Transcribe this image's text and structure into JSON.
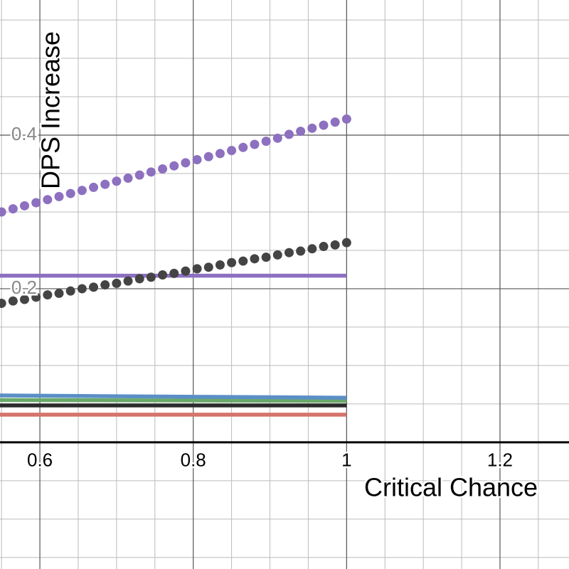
{
  "chart_data": {
    "type": "line",
    "x_label": "Critical Chance",
    "y_label": "DPS Increase",
    "xlim": [
      0.548,
      1.29
    ],
    "ylim": [
      -0.165,
      0.576
    ],
    "xticks": [
      0.6,
      0.8,
      1,
      1.2
    ],
    "yticks": [
      0.2,
      0.4
    ],
    "minor_xticks": [
      0.55,
      0.65,
      0.7,
      0.75,
      0.85,
      0.9,
      0.95,
      1.05,
      1.1,
      1.15,
      1.25
    ],
    "minor_yticks": [
      -0.15,
      -0.1,
      -0.05,
      0.05,
      0.1,
      0.15,
      0.25,
      0.3,
      0.35,
      0.45,
      0.5,
      0.55
    ],
    "grid": true,
    "series": [
      {
        "style": "points",
        "color": "#8d70c0",
        "x": [
          0.55,
          0.565,
          0.58,
          0.595,
          0.61,
          0.625,
          0.64,
          0.655,
          0.67,
          0.685,
          0.7,
          0.715,
          0.73,
          0.745,
          0.76,
          0.775,
          0.79,
          0.805,
          0.82,
          0.835,
          0.85,
          0.865,
          0.88,
          0.895,
          0.91,
          0.925,
          0.94,
          0.955,
          0.97,
          0.985,
          1.0
        ],
        "values": [
          0.3,
          0.304,
          0.308,
          0.312,
          0.316,
          0.32,
          0.324,
          0.328,
          0.332,
          0.336,
          0.34,
          0.344,
          0.348,
          0.352,
          0.356,
          0.36,
          0.364,
          0.368,
          0.372,
          0.376,
          0.38,
          0.384,
          0.388,
          0.392,
          0.396,
          0.401,
          0.405,
          0.409,
          0.413,
          0.417,
          0.421
        ]
      },
      {
        "style": "points",
        "color": "#444444",
        "x": [
          0.55,
          0.565,
          0.58,
          0.595,
          0.61,
          0.625,
          0.64,
          0.655,
          0.67,
          0.685,
          0.7,
          0.715,
          0.73,
          0.745,
          0.76,
          0.775,
          0.79,
          0.805,
          0.82,
          0.835,
          0.85,
          0.865,
          0.88,
          0.895,
          0.91,
          0.925,
          0.94,
          0.955,
          0.97,
          0.985,
          1.0
        ],
        "values": [
          0.181,
          0.184,
          0.186,
          0.189,
          0.192,
          0.194,
          0.197,
          0.2,
          0.202,
          0.205,
          0.207,
          0.21,
          0.213,
          0.215,
          0.218,
          0.22,
          0.223,
          0.226,
          0.228,
          0.231,
          0.234,
          0.236,
          0.239,
          0.241,
          0.244,
          0.247,
          0.249,
          0.252,
          0.255,
          0.257,
          0.26
        ]
      },
      {
        "style": "line",
        "color": "#8d70c0",
        "x": [
          0.548,
          1.0
        ],
        "values": [
          0.217,
          0.217
        ]
      },
      {
        "style": "line",
        "color": "#5b8fc6",
        "x": [
          0.548,
          1.0
        ],
        "values": [
          0.061,
          0.058
        ]
      },
      {
        "style": "line",
        "color": "#6aa96a",
        "x": [
          0.548,
          1.0
        ],
        "values": [
          0.055,
          0.054
        ]
      },
      {
        "style": "line",
        "color": "#2b2b2b",
        "x": [
          0.548,
          1.0
        ],
        "values": [
          0.048,
          0.048
        ]
      },
      {
        "style": "line",
        "color": "#d4736c",
        "x": [
          0.548,
          1.0
        ],
        "values": [
          0.036,
          0.036
        ]
      }
    ]
  }
}
